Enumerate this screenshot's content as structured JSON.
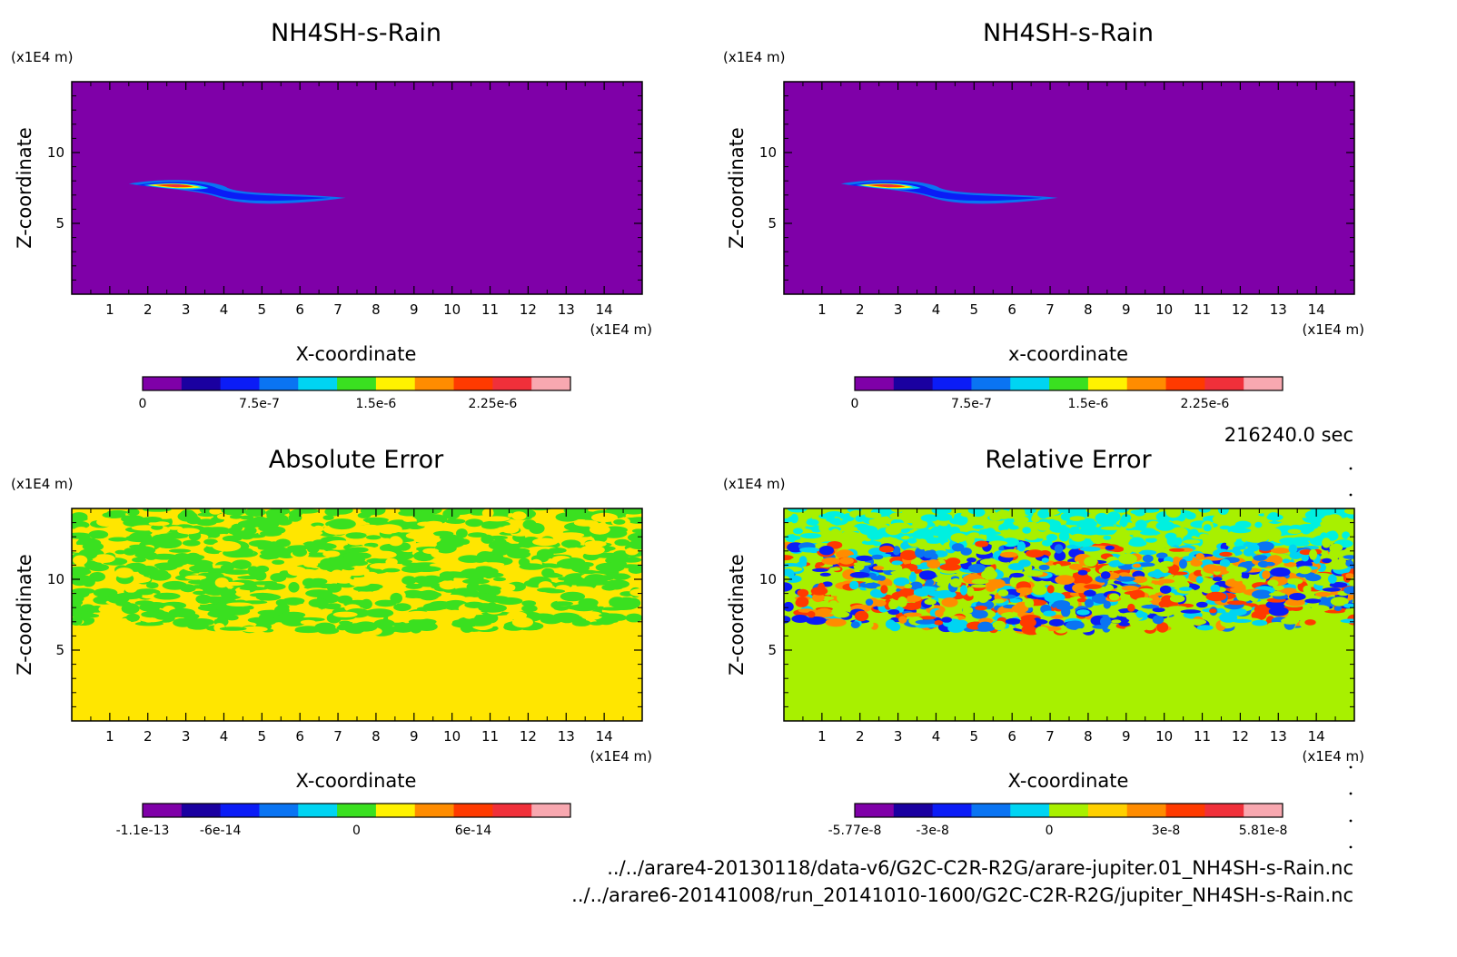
{
  "time_label": "216240.0 sec",
  "files": [
    "../../arare4-20130118/data-v6/G2C-C2R-R2G/arare-jupiter.01_NH4SH-s-Rain.nc",
    "../../arare6-20141008/run_20141010-1600/G2C-C2R-R2G/jupiter_NH4SH-s-Rain.nc"
  ],
  "chart_data": [
    {
      "type": "heatmap",
      "title": "NH4SH-s-Rain",
      "xlabel": "X-coordinate",
      "ylabel": "Z-coordinate",
      "x_unit": "(x1E4 m)",
      "y_unit": "(x1E4 m)",
      "xlim": [
        0,
        15
      ],
      "ylim": [
        0,
        15
      ],
      "x_ticks": [
        "1",
        "2",
        "3",
        "4",
        "5",
        "6",
        "7",
        "8",
        "9",
        "10",
        "11",
        "12",
        "13",
        "14"
      ],
      "y_ticks": [
        "5",
        "10"
      ],
      "background": "#7f00a8",
      "field": "plume",
      "colorbar": {
        "colors": [
          "#7f00a8",
          "#1a00a0",
          "#0b1cf6",
          "#0a74f2",
          "#00d4f2",
          "#3ae020",
          "#fff200",
          "#ff8c00",
          "#ff3a00",
          "#f0303a",
          "#f8a8b0"
        ],
        "ticks": [
          "0",
          "7.5e-7",
          "1.5e-6",
          "2.25e-6"
        ],
        "tick_pos": [
          0,
          3,
          6,
          9
        ]
      }
    },
    {
      "type": "heatmap",
      "title": "NH4SH-s-Rain",
      "xlabel": "x-coordinate",
      "ylabel": "Z-coordinate",
      "x_unit": "(x1E4 m)",
      "y_unit": "(x1E4 m)",
      "xlim": [
        0,
        15
      ],
      "ylim": [
        0,
        15
      ],
      "x_ticks": [
        "1",
        "2",
        "3",
        "4",
        "5",
        "6",
        "7",
        "8",
        "9",
        "10",
        "11",
        "12",
        "13",
        "14"
      ],
      "y_ticks": [
        "5",
        "10"
      ],
      "background": "#7f00a8",
      "field": "plume",
      "colorbar": {
        "colors": [
          "#7f00a8",
          "#1a00a0",
          "#0b1cf6",
          "#0a74f2",
          "#00d4f2",
          "#3ae020",
          "#fff200",
          "#ff8c00",
          "#ff3a00",
          "#f0303a",
          "#f8a8b0"
        ],
        "ticks": [
          "0",
          "7.5e-7",
          "1.5e-6",
          "2.25e-6"
        ],
        "tick_pos": [
          0,
          3,
          6,
          9
        ]
      }
    },
    {
      "type": "heatmap",
      "title": "Absolute Error",
      "xlabel": "X-coordinate",
      "ylabel": "Z-coordinate",
      "x_unit": "(x1E4 m)",
      "y_unit": "(x1E4 m)",
      "xlim": [
        0,
        15
      ],
      "ylim": [
        0,
        15
      ],
      "x_ticks": [
        "1",
        "2",
        "3",
        "4",
        "5",
        "6",
        "7",
        "8",
        "9",
        "10",
        "11",
        "12",
        "13",
        "14"
      ],
      "y_ticks": [
        "5",
        "10"
      ],
      "background": "#ffe600",
      "field": "abs_noise",
      "noise_z_range": [
        7,
        15
      ],
      "noise_colors": [
        "#3ae020",
        "#3ae020",
        "#3ae020",
        "#ffe600"
      ],
      "colorbar": {
        "colors": [
          "#7f00a8",
          "#1a00a0",
          "#0b1cf6",
          "#0a74f2",
          "#00d4f2",
          "#3ae020",
          "#fff200",
          "#ff8c00",
          "#ff3a00",
          "#f0303a",
          "#f8a8b0"
        ],
        "ticks": [
          "-1.1e-13",
          "-6e-14",
          "0",
          "6e-14"
        ],
        "tick_pos": [
          0,
          2,
          5.5,
          8.5
        ]
      }
    },
    {
      "type": "heatmap",
      "title": "Relative Error",
      "xlabel": "X-coordinate",
      "ylabel": "Z-coordinate",
      "x_unit": "(x1E4 m)",
      "y_unit": "(x1E4 m)",
      "xlim": [
        0,
        15
      ],
      "ylim": [
        0,
        15
      ],
      "x_ticks": [
        "1",
        "2",
        "3",
        "4",
        "5",
        "6",
        "7",
        "8",
        "9",
        "10",
        "11",
        "12",
        "13",
        "14"
      ],
      "y_ticks": [
        "5",
        "10"
      ],
      "background": "#a8f000",
      "field": "rel_noise",
      "noise_z_range": [
        7,
        15
      ],
      "noise_colors": [
        "#0b1cf6",
        "#0a74f2",
        "#00d4f2",
        "#ff3a00",
        "#ff8c00",
        "#a8f000",
        "#a8f000"
      ],
      "colorbar": {
        "colors": [
          "#7f00a8",
          "#1a00a0",
          "#0b1cf6",
          "#0a74f2",
          "#00d4f2",
          "#a8f000",
          "#ffd000",
          "#ff8c00",
          "#ff3a00",
          "#f0303a",
          "#f8a8b0"
        ],
        "ticks": [
          "-5.77e-8",
          "-3e-8",
          "0",
          "3e-8",
          "5.81e-8"
        ],
        "tick_pos": [
          0,
          2,
          5,
          8,
          10.5
        ]
      }
    }
  ]
}
